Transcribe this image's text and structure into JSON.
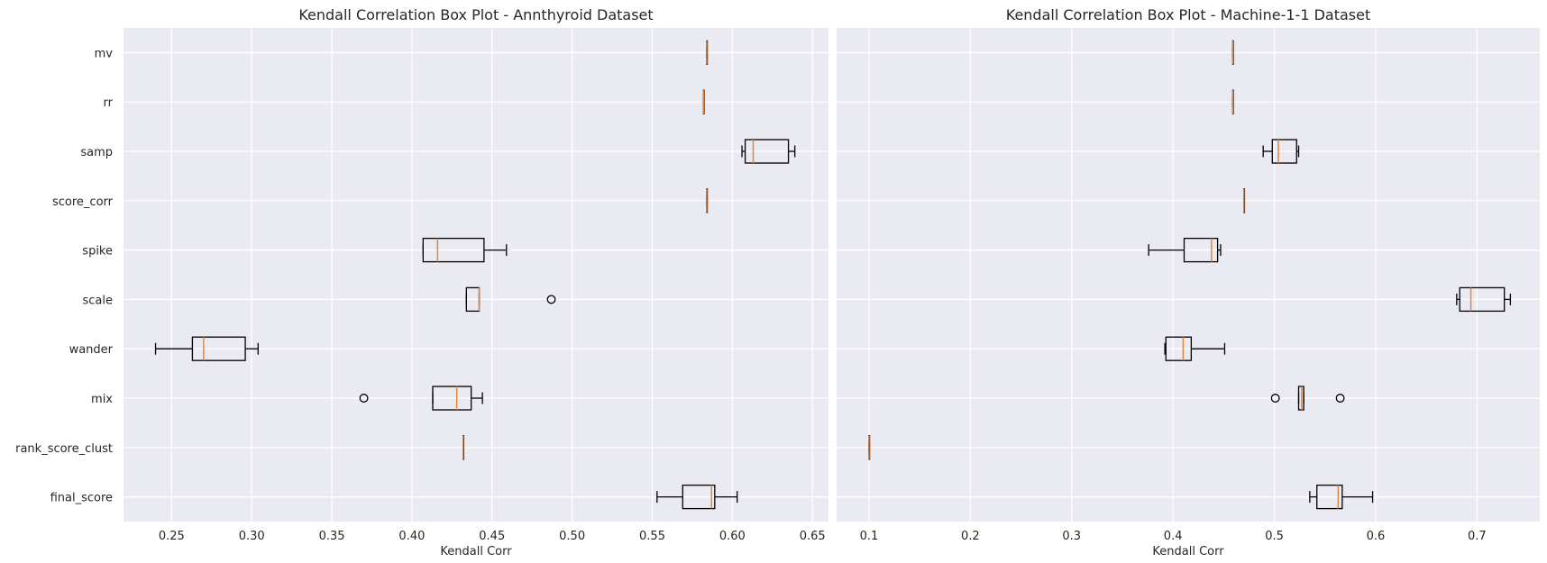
{
  "chart_data": [
    {
      "type": "boxplot",
      "orientation": "horizontal",
      "title": "Kendall Correlation Box Plot - Annthyroid Dataset",
      "xlabel": "Kendall Corr",
      "ylabel": "",
      "xlim": [
        0.22,
        0.66
      ],
      "xticks": [
        "0.25",
        "0.30",
        "0.35",
        "0.40",
        "0.45",
        "0.50",
        "0.55",
        "0.60",
        "0.65"
      ],
      "xtick_values": [
        0.25,
        0.3,
        0.35,
        0.4,
        0.45,
        0.5,
        0.55,
        0.6,
        0.65
      ],
      "grid": true,
      "categories": [
        "mv",
        "rr",
        "samp",
        "score_corr",
        "spike",
        "scale",
        "wander",
        "mix",
        "rank_score_clust",
        "final_score"
      ],
      "boxes": [
        {
          "whislo": 0.584,
          "q1": 0.584,
          "med": 0.584,
          "q3": 0.584,
          "whishi": 0.584,
          "fliers": []
        },
        {
          "whislo": 0.582,
          "q1": 0.582,
          "med": 0.582,
          "q3": 0.582,
          "whishi": 0.582,
          "fliers": []
        },
        {
          "whislo": 0.606,
          "q1": 0.608,
          "med": 0.613,
          "q3": 0.635,
          "whishi": 0.639,
          "fliers": []
        },
        {
          "whislo": 0.584,
          "q1": 0.584,
          "med": 0.584,
          "q3": 0.584,
          "whishi": 0.584,
          "fliers": []
        },
        {
          "whislo": 0.407,
          "q1": 0.407,
          "med": 0.416,
          "q3": 0.445,
          "whishi": 0.459,
          "fliers": []
        },
        {
          "whislo": 0.434,
          "q1": 0.434,
          "med": 0.442,
          "q3": 0.442,
          "whishi": 0.442,
          "fliers": [
            0.487
          ]
        },
        {
          "whislo": 0.24,
          "q1": 0.263,
          "med": 0.27,
          "q3": 0.296,
          "whishi": 0.304,
          "fliers": []
        },
        {
          "whislo": 0.413,
          "q1": 0.413,
          "med": 0.428,
          "q3": 0.437,
          "whishi": 0.444,
          "fliers": [
            0.37
          ]
        },
        {
          "whislo": 0.432,
          "q1": 0.432,
          "med": 0.432,
          "q3": 0.432,
          "whishi": 0.432,
          "fliers": []
        },
        {
          "whislo": 0.553,
          "q1": 0.569,
          "med": 0.587,
          "q3": 0.589,
          "whishi": 0.603,
          "fliers": []
        }
      ]
    },
    {
      "type": "boxplot",
      "orientation": "horizontal",
      "title": "Kendall Correlation Box Plot - Machine-1-1 Dataset",
      "xlabel": "Kendall Corr",
      "ylabel": "",
      "xlim": [
        0.068,
        0.762
      ],
      "xticks": [
        "0.1",
        "0.2",
        "0.3",
        "0.4",
        "0.5",
        "0.6",
        "0.7"
      ],
      "xtick_values": [
        0.1,
        0.2,
        0.3,
        0.4,
        0.5,
        0.6,
        0.7
      ],
      "grid": true,
      "categories": [
        "mv",
        "rr",
        "samp",
        "score_corr",
        "spike",
        "scale",
        "wander",
        "mix",
        "rank_score_clust",
        "final_score"
      ],
      "boxes": [
        {
          "whislo": 0.459,
          "q1": 0.459,
          "med": 0.459,
          "q3": 0.459,
          "whishi": 0.459,
          "fliers": []
        },
        {
          "whislo": 0.459,
          "q1": 0.459,
          "med": 0.459,
          "q3": 0.459,
          "whishi": 0.459,
          "fliers": []
        },
        {
          "whislo": 0.489,
          "q1": 0.498,
          "med": 0.504,
          "q3": 0.522,
          "whishi": 0.524,
          "fliers": []
        },
        {
          "whislo": 0.47,
          "q1": 0.47,
          "med": 0.47,
          "q3": 0.47,
          "whishi": 0.47,
          "fliers": []
        },
        {
          "whislo": 0.376,
          "q1": 0.411,
          "med": 0.438,
          "q3": 0.444,
          "whishi": 0.447,
          "fliers": []
        },
        {
          "whislo": 0.68,
          "q1": 0.683,
          "med": 0.694,
          "q3": 0.727,
          "whishi": 0.733,
          "fliers": []
        },
        {
          "whislo": 0.392,
          "q1": 0.393,
          "med": 0.41,
          "q3": 0.418,
          "whishi": 0.451,
          "fliers": []
        },
        {
          "whislo": 0.524,
          "q1": 0.524,
          "med": 0.527,
          "q3": 0.529,
          "whishi": 0.529,
          "fliers": [
            0.501,
            0.565
          ]
        },
        {
          "whislo": 0.1,
          "q1": 0.1,
          "med": 0.1,
          "q3": 0.1,
          "whishi": 0.1,
          "fliers": []
        },
        {
          "whislo": 0.535,
          "q1": 0.542,
          "med": 0.563,
          "q3": 0.567,
          "whishi": 0.597,
          "fliers": []
        }
      ]
    }
  ],
  "colors": {
    "plot_background": "#EAEAF2",
    "grid": "#FFFFFF",
    "box_edge": "#000000",
    "median": "#E8853A",
    "text": "#262626"
  }
}
